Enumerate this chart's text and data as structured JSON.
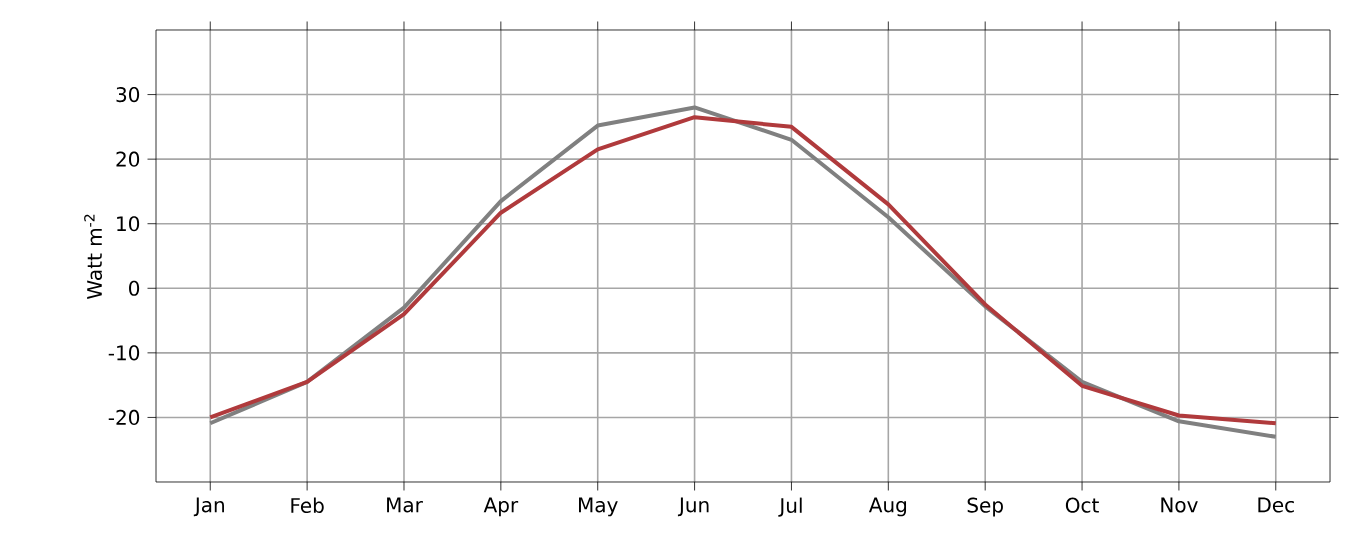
{
  "chart_data": {
    "type": "line",
    "ylabel": "Watt m$^{-2}$",
    "categories": [
      "Jan",
      "Feb",
      "Mar",
      "Apr",
      "May",
      "Jun",
      "Jul",
      "Aug",
      "Sep",
      "Oct",
      "Nov",
      "Dec"
    ],
    "series": [
      {
        "color": "#808080",
        "values": [
          -20.9,
          -14.5,
          -3,
          13.5,
          25.2,
          28,
          23,
          11,
          -2.8,
          -14.5,
          -20.6,
          -23
        ]
      },
      {
        "color": "#b03a3c",
        "values": [
          -20,
          -14.5,
          -4,
          11.7,
          21.5,
          26.5,
          25,
          13,
          -2.5,
          -15.1,
          -19.7,
          -20.9
        ]
      }
    ],
    "ylim": [
      -30,
      40
    ],
    "yticks": [
      -20,
      -10,
      0,
      10,
      20,
      30
    ],
    "grid": true,
    "marker": "none",
    "line_style": "solid"
  }
}
